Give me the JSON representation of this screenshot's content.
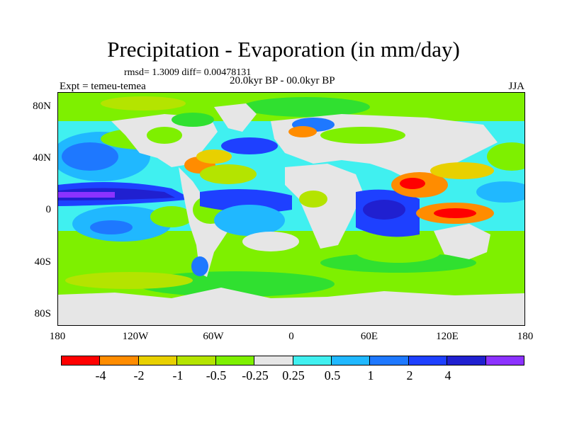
{
  "header": {
    "title": "Precipitation - Evaporation (in mm/day)",
    "stats": "rmsd= 1.3009 diff= 0.00478131",
    "period": "20.0kyr BP - 00.0kyr BP",
    "experiment": "Expt = temeu-temea",
    "season": "JJA"
  },
  "map": {
    "projection": "cylindrical-equidistant",
    "lon_range": [
      -180,
      180
    ],
    "lat_range": [
      -90,
      90
    ],
    "lat_labels": [
      "80N",
      "40N",
      "0",
      "40S",
      "80S"
    ],
    "lon_labels": [
      "180",
      "120W",
      "60W",
      "0",
      "60E",
      "120E",
      "180"
    ],
    "features": [
      "gray-neutral-land",
      "blue-moistening-tropical-oceans",
      "red-orange-drying-maritime-continent",
      "green-mild-drying-midlatitudes"
    ]
  },
  "colorbar": {
    "colors": [
      "#ff0000",
      "#ff8c00",
      "#e8d000",
      "#b4e400",
      "#7ef000",
      "#30e030",
      "#e6e6e6",
      "#40f0f0",
      "#20b8ff",
      "#1e78ff",
      "#1e40ff",
      "#2020d0",
      "#8c32ff"
    ],
    "labels": [
      "-4",
      "-2",
      "-1",
      "-0.5",
      "-0.25",
      "0.25",
      "0.5",
      "1",
      "2",
      "4"
    ]
  }
}
